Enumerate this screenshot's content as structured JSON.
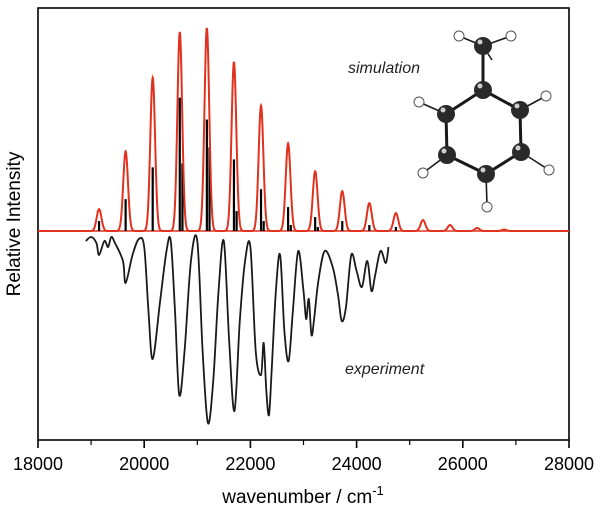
{
  "chart_data": {
    "type": "line",
    "xlabel": "wavenumber / cm",
    "xlabel_superscript": "-1",
    "ylabel": "Relative Intensity",
    "xlim": [
      18000,
      28000
    ],
    "ylim": [
      -1.0,
      1.05
    ],
    "x_ticks": [
      "18000",
      "20000",
      "22000",
      "24000",
      "26000",
      "28000"
    ],
    "grid": false,
    "legend": "none",
    "annotations": [
      "simulation",
      "experiment"
    ],
    "colors": {
      "simulation": "#e0321e",
      "sticks": "#000000",
      "experiment": "#1a1a1a",
      "molecule_atom": "#2a2a2a",
      "molecule_h": "#ffffff"
    },
    "series": [
      {
        "kind": "envelope",
        "color": "#e0321e",
        "peaks": [
          {
            "x": 19150,
            "y": 0.11
          },
          {
            "x": 19650,
            "y": 0.4
          },
          {
            "x": 20160,
            "y": 0.77
          },
          {
            "x": 20670,
            "y": 1.0
          },
          {
            "x": 21180,
            "y": 1.02
          },
          {
            "x": 21690,
            "y": 0.85
          },
          {
            "x": 22200,
            "y": 0.63
          },
          {
            "x": 22710,
            "y": 0.44
          },
          {
            "x": 23220,
            "y": 0.3
          },
          {
            "x": 23730,
            "y": 0.2
          },
          {
            "x": 24240,
            "y": 0.14
          },
          {
            "x": 24740,
            "y": 0.09
          },
          {
            "x": 25250,
            "y": 0.055
          },
          {
            "x": 25760,
            "y": 0.03
          },
          {
            "x": 26270,
            "y": 0.015
          },
          {
            "x": 26780,
            "y": 0.007
          }
        ]
      },
      {
        "kind": "sticks",
        "color": "#000000",
        "x": [
          19150,
          19650,
          20160,
          20670,
          21180,
          21690,
          22200,
          22710,
          23220,
          23730,
          24240,
          24740,
          20720,
          21230,
          21740,
          22250,
          22760,
          23270
        ],
        "y": [
          0.05,
          0.16,
          0.32,
          0.67,
          0.56,
          0.36,
          0.21,
          0.12,
          0.07,
          0.05,
          0.03,
          0.02,
          0.34,
          0.42,
          0.1,
          0.05,
          0.03,
          0.02
        ]
      },
      {
        "kind": "experiment",
        "color": "#1a1a1a",
        "x": [
          18900,
          19000,
          19100,
          19150,
          19250,
          19320,
          19380,
          19450,
          19600,
          19650,
          19780,
          19900,
          20000,
          20080,
          20160,
          20300,
          20420,
          20500,
          20580,
          20660,
          20760,
          20880,
          21000,
          21100,
          21200,
          21300,
          21400,
          21500,
          21600,
          21700,
          21800,
          21900,
          22000,
          22100,
          22200,
          22250,
          22300,
          22350,
          22400,
          22480,
          22560,
          22640,
          22720,
          22800,
          22900,
          23000,
          23050,
          23100,
          23150,
          23200,
          23280,
          23400,
          23550,
          23650,
          23720,
          23800,
          23900,
          24000,
          24100,
          24200,
          24280,
          24350,
          24450,
          24550,
          24600
        ],
        "y": [
          -0.05,
          -0.03,
          -0.06,
          -0.12,
          -0.05,
          -0.08,
          -0.03,
          -0.06,
          -0.15,
          -0.26,
          -0.12,
          -0.04,
          -0.08,
          -0.4,
          -0.64,
          -0.35,
          -0.1,
          -0.05,
          -0.4,
          -0.82,
          -0.6,
          -0.15,
          -0.05,
          -0.6,
          -0.96,
          -0.75,
          -0.3,
          -0.05,
          -0.55,
          -0.9,
          -0.45,
          -0.15,
          -0.08,
          -0.6,
          -0.72,
          -0.56,
          -0.8,
          -0.92,
          -0.7,
          -0.3,
          -0.12,
          -0.5,
          -0.65,
          -0.4,
          -0.1,
          -0.3,
          -0.44,
          -0.34,
          -0.52,
          -0.44,
          -0.25,
          -0.1,
          -0.18,
          -0.32,
          -0.45,
          -0.38,
          -0.12,
          -0.2,
          -0.28,
          -0.15,
          -0.3,
          -0.22,
          -0.1,
          -0.16,
          -0.08
        ]
      }
    ]
  }
}
